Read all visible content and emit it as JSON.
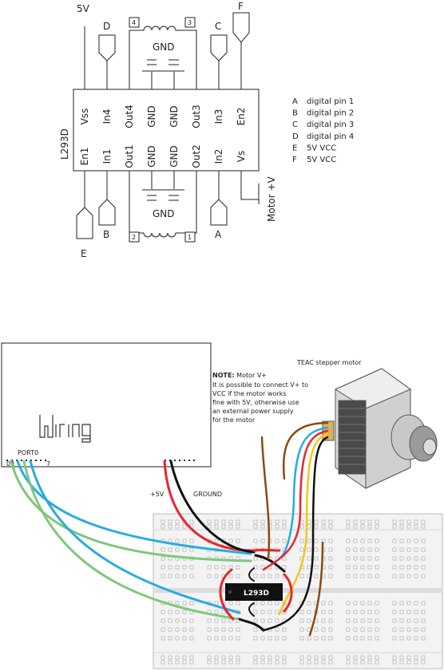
{
  "schematic": {
    "chip_name": "L293D",
    "top_pins": [
      "Vss",
      "In4",
      "Out4",
      "GND",
      "GND",
      "Out3",
      "In3",
      "En2"
    ],
    "bottom_pins": [
      "En1",
      "In1",
      "Out1",
      "GND",
      "GND",
      "Out2",
      "In2",
      "Vs"
    ],
    "supply_label": "5V",
    "motor_supply_label": "Motor +V",
    "gnd_label": "GND",
    "coil_top_left": "4",
    "coil_top_right": "3",
    "coil_bottom_left": "2",
    "coil_bottom_right": "1",
    "connectors": {
      "top_in4": "D",
      "top_in3": "C",
      "top_en2": "F",
      "bottom_en1": "E",
      "bottom_in1": "B",
      "bottom_in2": "A"
    },
    "legend": [
      {
        "key": "A",
        "value": "digital pin 1"
      },
      {
        "key": "B",
        "value": "digital pin 2"
      },
      {
        "key": "C",
        "value": "digital pin 3"
      },
      {
        "key": "D",
        "value": "digital pin 4"
      },
      {
        "key": "E",
        "value": "5V VCC"
      },
      {
        "key": "F",
        "value": "5V VCC"
      }
    ]
  },
  "breadboard": {
    "board_logo": "Wiring",
    "port_label": "PORT0",
    "port_start": "0",
    "port_second": "1",
    "port_end": "7",
    "plus5v_label": "+5V",
    "ground_label": "GROUND",
    "chip_label": "L293D",
    "motor_label": "TEAC stepper motor",
    "note_title": "NOTE:",
    "note_title_rest": " Motor V+",
    "note_lines": [
      "It is possible to connect V+ to",
      "VCC if the motor works",
      "fine with 5V, otherwise use",
      "an external power supply",
      "for the motor"
    ],
    "wire_colors": {
      "red": "#e8262c",
      "black": "#111111",
      "blue": "#29abe2",
      "green": "#7dc87d",
      "brown": "#8b4a12",
      "yellow": "#f6c518"
    }
  }
}
